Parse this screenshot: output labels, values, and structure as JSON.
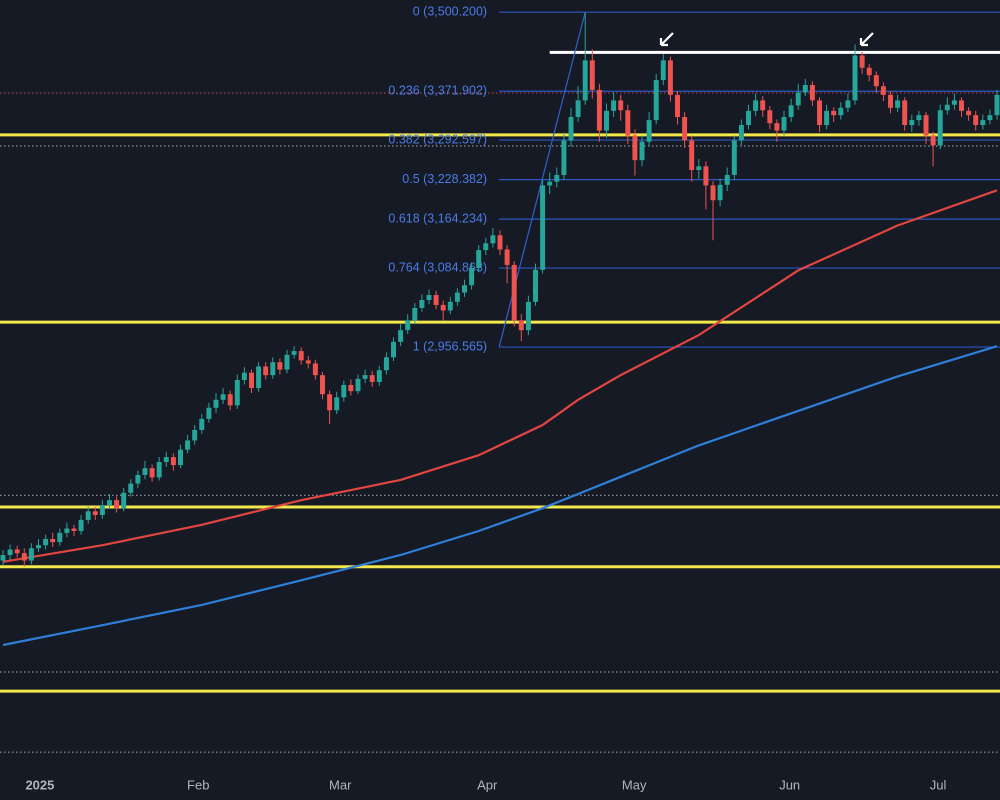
{
  "chart_data": {
    "type": "candlestick",
    "xlim": [
      -0.42,
      140.42
    ],
    "ylim": [
      2270,
      3520
    ],
    "xticks": [
      {
        "value": 5.2,
        "label": "2025"
      },
      {
        "value": 27.5,
        "label": "Feb"
      },
      {
        "value": 47.5,
        "label": "Mar"
      },
      {
        "value": 68.2,
        "label": "Apr"
      },
      {
        "value": 88.9,
        "label": "May"
      },
      {
        "value": 110.8,
        "label": "Jun"
      },
      {
        "value": 131.7,
        "label": "Jul"
      }
    ],
    "up_color": "#26a69a",
    "down_color": "#ef5350",
    "open": [
      2610,
      2619,
      2628,
      2622,
      2610,
      2630,
      2635,
      2645,
      2640,
      2655,
      2662,
      2658,
      2676,
      2690,
      2684,
      2700,
      2708,
      2695,
      2720,
      2735,
      2749,
      2760,
      2745,
      2770,
      2778,
      2765,
      2790,
      2805,
      2822,
      2840,
      2858,
      2871,
      2880,
      2862,
      2903,
      2915,
      2890,
      2925,
      2911,
      2932,
      2920,
      2944,
      2950,
      2935,
      2930,
      2911,
      2880,
      2854,
      2875,
      2895,
      2885,
      2905,
      2911,
      2900,
      2919,
      2940,
      2965,
      2984,
      3000,
      3020,
      3033,
      3041,
      3025,
      3016,
      3030,
      3045,
      3057,
      3085,
      3114,
      3125,
      3138,
      3115,
      3090,
      3000,
      2984,
      3030,
      3082,
      3219,
      3225,
      3236,
      3292,
      3330,
      3357,
      3422,
      3374,
      3308,
      3340,
      3357,
      3341,
      3300,
      3260,
      3290,
      3325,
      3390,
      3422,
      3366,
      3330,
      3292,
      3244,
      3250,
      3219,
      3195,
      3220,
      3236,
      3292,
      3317,
      3340,
      3357,
      3341,
      3320,
      3308,
      3330,
      3349,
      3370,
      3382,
      3357,
      3317,
      3340,
      3333,
      3345,
      3357,
      3430,
      3410,
      3398,
      3380,
      3366,
      3345,
      3357,
      3317,
      3325,
      3333,
      3300,
      3284,
      3341,
      3350,
      3357,
      3340,
      3333,
      3317,
      3325,
      3333
    ],
    "high": [
      2627,
      2636,
      2634,
      2630,
      2638,
      2645,
      2652,
      2655,
      2662,
      2672,
      2668,
      2684,
      2698,
      2697,
      2708,
      2718,
      2714,
      2728,
      2742,
      2756,
      2772,
      2766,
      2778,
      2786,
      2784,
      2798,
      2814,
      2830,
      2848,
      2866,
      2882,
      2890,
      2886,
      2912,
      2924,
      2920,
      2932,
      2932,
      2940,
      2938,
      2952,
      2958,
      2956,
      2942,
      2936,
      2916,
      2886,
      2884,
      2902,
      2904,
      2912,
      2920,
      2918,
      2926,
      2948,
      2972,
      2994,
      3010,
      3028,
      3042,
      3050,
      3048,
      3032,
      3038,
      3052,
      3066,
      3094,
      3122,
      3134,
      3150,
      3146,
      3122,
      3096,
      3010,
      3040,
      3092,
      3228,
      3240,
      3248,
      3305,
      3345,
      3380,
      3500,
      3440,
      3384,
      3352,
      3370,
      3366,
      3350,
      3310,
      3300,
      3338,
      3400,
      3432,
      3428,
      3372,
      3338,
      3300,
      3262,
      3258,
      3226,
      3230,
      3248,
      3300,
      3326,
      3350,
      3368,
      3364,
      3348,
      3326,
      3340,
      3360,
      3384,
      3392,
      3388,
      3362,
      3350,
      3346,
      3354,
      3368,
      3448,
      3436,
      3416,
      3404,
      3386,
      3372,
      3366,
      3362,
      3334,
      3340,
      3338,
      3306,
      3350,
      3362,
      3368,
      3362,
      3346,
      3340,
      3334,
      3342,
      3374
    ],
    "low": [
      2602,
      2611,
      2615,
      2600,
      2604,
      2624,
      2628,
      2632,
      2634,
      2648,
      2650,
      2652,
      2670,
      2676,
      2678,
      2694,
      2688,
      2690,
      2714,
      2728,
      2742,
      2738,
      2740,
      2762,
      2756,
      2760,
      2784,
      2798,
      2816,
      2834,
      2850,
      2864,
      2854,
      2856,
      2896,
      2882,
      2884,
      2904,
      2905,
      2912,
      2914,
      2938,
      2928,
      2922,
      2904,
      2872,
      2832,
      2848,
      2868,
      2878,
      2880,
      2898,
      2892,
      2894,
      2912,
      2934,
      2958,
      2978,
      2994,
      3014,
      3026,
      3018,
      3000,
      3010,
      3024,
      3038,
      3050,
      3078,
      3106,
      3118,
      3106,
      3060,
      2990,
      2966,
      2976,
      3024,
      3076,
      3205,
      3216,
      3228,
      3282,
      3322,
      3350,
      3360,
      3290,
      3296,
      3330,
      3324,
      3286,
      3235,
      3250,
      3282,
      3318,
      3382,
      3355,
      3318,
      3280,
      3225,
      3230,
      3180,
      3130,
      3185,
      3210,
      3228,
      3284,
      3310,
      3332,
      3330,
      3310,
      3290,
      3300,
      3322,
      3342,
      3364,
      3348,
      3306,
      3310,
      3322,
      3326,
      3338,
      3350,
      3400,
      3388,
      3370,
      3356,
      3336,
      3338,
      3308,
      3306,
      3316,
      3286,
      3250,
      3278,
      3334,
      3342,
      3330,
      3324,
      3308,
      3310,
      3318,
      3326
    ],
    "close": [
      2619,
      2628,
      2622,
      2610,
      2630,
      2635,
      2645,
      2640,
      2655,
      2662,
      2658,
      2676,
      2690,
      2684,
      2700,
      2708,
      2695,
      2720,
      2735,
      2749,
      2760,
      2745,
      2770,
      2778,
      2765,
      2790,
      2805,
      2822,
      2840,
      2858,
      2871,
      2880,
      2862,
      2903,
      2915,
      2890,
      2925,
      2911,
      2932,
      2920,
      2944,
      2950,
      2935,
      2930,
      2911,
      2880,
      2854,
      2875,
      2895,
      2885,
      2905,
      2911,
      2900,
      2919,
      2940,
      2965,
      2984,
      3000,
      3020,
      3033,
      3041,
      3025,
      3016,
      3030,
      3045,
      3057,
      3085,
      3114,
      3125,
      3138,
      3115,
      3090,
      3000,
      2984,
      3030,
      3082,
      3219,
      3225,
      3236,
      3292,
      3330,
      3357,
      3422,
      3374,
      3308,
      3340,
      3357,
      3341,
      3300,
      3260,
      3290,
      3325,
      3390,
      3422,
      3366,
      3330,
      3292,
      3244,
      3250,
      3219,
      3195,
      3220,
      3236,
      3292,
      3317,
      3340,
      3357,
      3341,
      3320,
      3308,
      3330,
      3349,
      3370,
      3382,
      3357,
      3317,
      3340,
      3333,
      3345,
      3357,
      3430,
      3410,
      3398,
      3380,
      3366,
      3345,
      3357,
      3317,
      3325,
      3333,
      3300,
      3284,
      3341,
      3350,
      3357,
      3340,
      3333,
      3317,
      3325,
      3333,
      3366
    ],
    "ma_x": [
      0,
      14,
      28,
      42,
      56,
      67,
      76,
      81,
      87,
      98,
      112,
      126,
      140
    ],
    "series": [
      {
        "color": "#e0463f",
        "values": [
          2608,
          2635,
          2668,
          2708,
          2741,
          2781,
          2830,
          2871,
          2911,
          2976,
          3081,
          3154,
          3211
        ]
      },
      {
        "color": "#2f7fd8",
        "values": [
          2473,
          2505,
          2538,
          2578,
          2619,
          2658,
          2695,
          2718,
          2746,
          2797,
          2853,
          2909,
          2958
        ]
      }
    ],
    "fib_start": 71,
    "fib_end": 82,
    "fib_levels": [
      {
        "value": 3500.2,
        "label": "0 (3,500.200)"
      },
      {
        "value": 3371.902,
        "label": "0.236 (3,371.902)"
      },
      {
        "value": 3292.597,
        "label": "0.382 (3,292.597)"
      },
      {
        "value": 3228.382,
        "label": "0.5 (3,228.382)"
      },
      {
        "value": 3164.234,
        "label": "0.618 (3,164.234)"
      },
      {
        "value": 3084.863,
        "label": "0.764 (3,084.863)"
      },
      {
        "value": 2956.565,
        "label": "1 (2,956.565)"
      }
    ],
    "support_levels": [
      3301,
      2997,
      2697,
      2600,
      2398
    ],
    "support_color": "#f2e84b",
    "resistance": {
      "value": 3435,
      "from": 77,
      "color": "#ffffff"
    },
    "dotted_levels": [
      {
        "value": 3369,
        "color": "#ef5350"
      },
      {
        "value": 3283,
        "color": "#cfd2da"
      },
      {
        "value": 2716,
        "color": "#cfd2da"
      },
      {
        "value": 2429,
        "color": "#cfd2da"
      },
      {
        "value": 2299,
        "color": "#cfd2da"
      }
    ]
  }
}
